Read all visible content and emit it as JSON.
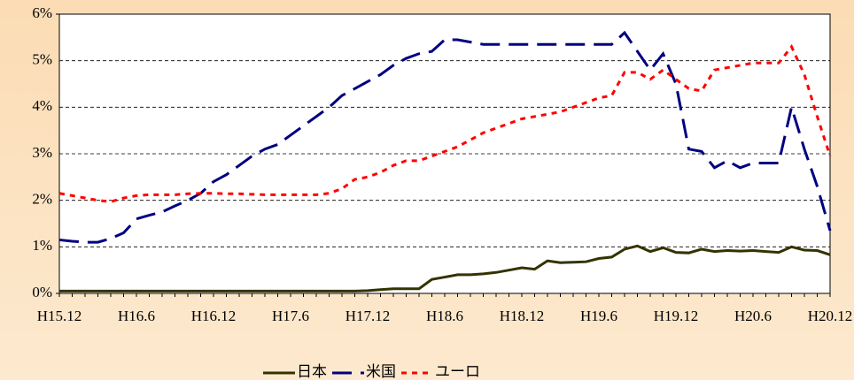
{
  "chart_data": {
    "type": "line",
    "categories": [
      "H15.12",
      null,
      null,
      null,
      null,
      null,
      "H16.6",
      null,
      null,
      null,
      null,
      null,
      "H16.12",
      null,
      null,
      null,
      null,
      null,
      "H17.6",
      null,
      null,
      null,
      null,
      null,
      "H17.12",
      null,
      null,
      null,
      null,
      null,
      "H18.6",
      null,
      null,
      null,
      null,
      null,
      "H18.12",
      null,
      null,
      null,
      null,
      null,
      "H19.6",
      null,
      null,
      null,
      null,
      null,
      "H19.12",
      null,
      null,
      null,
      null,
      null,
      "H20.6",
      null,
      null,
      null,
      null,
      null,
      "H20.12"
    ],
    "series": [
      {
        "name": "日本",
        "color": "#333300",
        "dash": "solid",
        "values": [
          0.05,
          0.05,
          0.05,
          0.05,
          0.05,
          0.05,
          0.05,
          0.05,
          0.05,
          0.05,
          0.05,
          0.05,
          0.05,
          0.05,
          0.05,
          0.05,
          0.05,
          0.05,
          0.05,
          0.05,
          0.05,
          0.05,
          0.05,
          0.05,
          0.06,
          0.08,
          0.1,
          0.1,
          0.1,
          0.3,
          0.35,
          0.4,
          0.4,
          0.42,
          0.45,
          0.5,
          0.55,
          0.52,
          0.7,
          0.66,
          0.67,
          0.68,
          0.75,
          0.78,
          0.95,
          1.02,
          0.9,
          0.98,
          0.88,
          0.87,
          0.95,
          0.9,
          0.92,
          0.91,
          0.92,
          0.9,
          0.88,
          1.0,
          0.93,
          0.92,
          0.83
        ]
      },
      {
        "name": "米国",
        "color": "#000080",
        "dash": "long",
        "values": [
          1.15,
          1.12,
          1.1,
          1.1,
          1.18,
          1.3,
          1.6,
          1.68,
          1.75,
          1.88,
          2.0,
          2.15,
          2.4,
          2.55,
          2.75,
          2.95,
          3.1,
          3.2,
          3.4,
          3.6,
          3.8,
          4.0,
          4.25,
          4.4,
          4.55,
          4.7,
          4.9,
          5.05,
          5.15,
          5.2,
          5.45,
          5.45,
          5.4,
          5.35,
          5.35,
          5.35,
          5.35,
          5.35,
          5.35,
          5.35,
          5.35,
          5.35,
          5.35,
          5.35,
          5.6,
          5.2,
          4.8,
          5.15,
          4.5,
          3.1,
          3.05,
          2.7,
          2.85,
          2.7,
          2.8,
          2.8,
          2.8,
          4.0,
          3.1,
          2.3,
          1.35
        ]
      },
      {
        "name": "ユーロ",
        "color": "#ff0000",
        "dash": "short",
        "values": [
          2.15,
          2.1,
          2.05,
          2.0,
          1.97,
          2.05,
          2.1,
          2.12,
          2.12,
          2.12,
          2.14,
          2.15,
          2.15,
          2.14,
          2.14,
          2.13,
          2.12,
          2.12,
          2.12,
          2.12,
          2.12,
          2.15,
          2.25,
          2.45,
          2.5,
          2.6,
          2.75,
          2.85,
          2.85,
          2.95,
          3.05,
          3.15,
          3.3,
          3.45,
          3.55,
          3.65,
          3.75,
          3.8,
          3.85,
          3.9,
          4.0,
          4.1,
          4.2,
          4.25,
          4.75,
          4.75,
          4.6,
          4.8,
          4.6,
          4.4,
          4.35,
          4.8,
          4.85,
          4.9,
          4.95,
          4.95,
          4.95,
          5.3,
          4.7,
          3.8,
          2.95
        ]
      }
    ],
    "ylim": [
      0,
      6
    ],
    "yticks": [
      {
        "value": 0,
        "label": "0%"
      },
      {
        "value": 1,
        "label": "1%"
      },
      {
        "value": 2,
        "label": "2%"
      },
      {
        "value": 3,
        "label": "3%"
      },
      {
        "value": 4,
        "label": "4%"
      },
      {
        "value": 5,
        "label": "5%"
      },
      {
        "value": 6,
        "label": "6%"
      }
    ],
    "grid": true,
    "legend": "bottom"
  }
}
